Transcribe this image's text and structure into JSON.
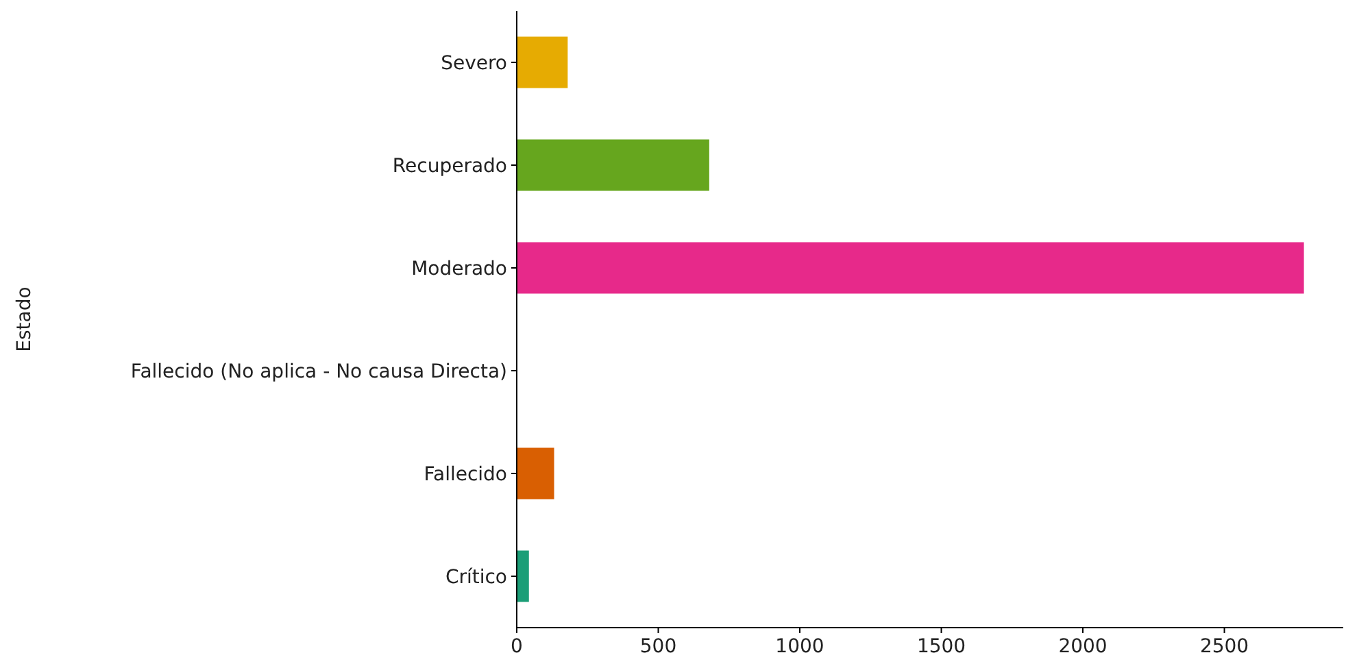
{
  "chart_data": {
    "type": "bar",
    "orientation": "horizontal",
    "ylabel": "Estado",
    "categories": [
      "Severo",
      "Recuperado",
      "Moderado",
      "Fallecido (No aplica - No causa Directa)",
      "Fallecido",
      "Crítico"
    ],
    "values": [
      180,
      680,
      2781,
      null,
      132,
      43
    ],
    "colors": [
      "#e6ab02",
      "#66a61e",
      "#e7298a",
      null,
      "#d95f02",
      "#1b9e77"
    ],
    "xlim": [
      0,
      2920
    ],
    "xticks": [
      0,
      500,
      1000,
      1500,
      2000,
      2500
    ],
    "grid": false
  }
}
